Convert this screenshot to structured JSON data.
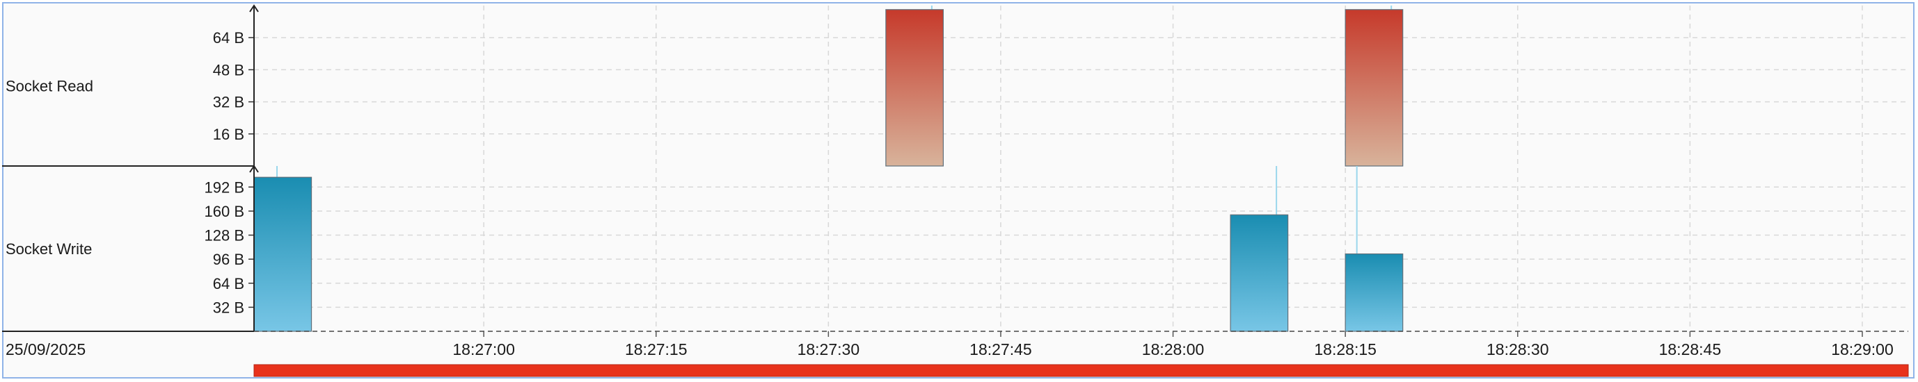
{
  "date_label": "25/09/2025",
  "colors": {
    "read_top": "#c63a2b",
    "read_bottom": "#d8b39b",
    "write_top": "#1a8db1",
    "write_bottom": "#78c6e6",
    "spike": "#9ad7ec",
    "progress_bar": "#e8321c",
    "grid": "#d8d8d8"
  },
  "chart_data": [
    {
      "type": "bar",
      "lane": "Socket Read",
      "ylabel": "Socket Read",
      "yticks": [
        "16 B",
        "32 B",
        "48 B",
        "64 B"
      ],
      "ytick_values": [
        16,
        32,
        48,
        64
      ],
      "ylim": [
        0,
        80
      ],
      "bars": [
        {
          "start": "18:27:35",
          "end": "18:27:40",
          "value": 78
        },
        {
          "start": "18:28:15",
          "end": "18:28:20",
          "value": 78
        }
      ],
      "spikes": [
        {
          "time": "18:27:39",
          "value": 80
        },
        {
          "time": "18:28:19",
          "value": 80
        }
      ]
    },
    {
      "type": "bar",
      "lane": "Socket Write",
      "ylabel": "Socket Write",
      "yticks": [
        "32 B",
        "64 B",
        "96 B",
        "128 B",
        "160 B",
        "192 B"
      ],
      "ytick_values": [
        32,
        64,
        96,
        128,
        160,
        192
      ],
      "ylim": [
        0,
        220
      ],
      "bars": [
        {
          "start": "18:26:40",
          "end": "18:26:45",
          "value": 205
        },
        {
          "start": "18:28:05",
          "end": "18:28:10",
          "value": 155
        },
        {
          "start": "18:28:15",
          "end": "18:28:20",
          "value": 103
        }
      ],
      "spikes": [
        {
          "time": "18:26:42",
          "value": 220
        },
        {
          "time": "18:28:09",
          "value": 220
        },
        {
          "time": "18:28:16",
          "value": 220
        }
      ]
    }
  ],
  "time_axis": {
    "ticks": [
      "18:27:00",
      "18:27:15",
      "18:27:30",
      "18:27:45",
      "18:28:00",
      "18:28:15",
      "18:28:30",
      "18:28:45",
      "18:29:00"
    ],
    "range": [
      "18:26:40",
      "18:29:04"
    ]
  },
  "selection_range": [
    "18:26:40",
    "18:29:04"
  ]
}
